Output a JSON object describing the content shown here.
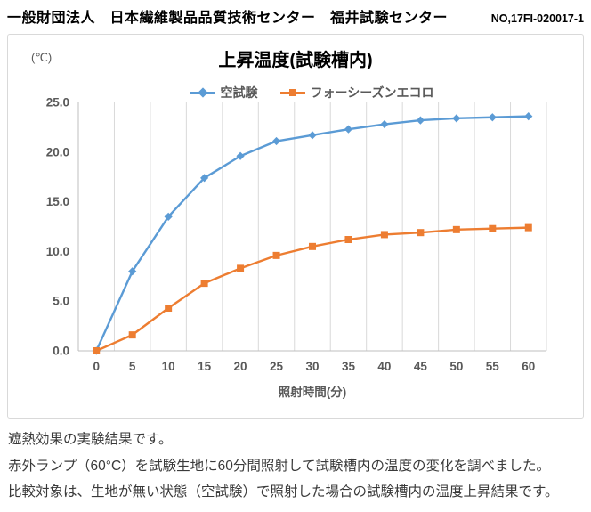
{
  "header": {
    "organization": "一般財団法人　日本繊維製品品質技術センター　福井試験センター",
    "doc_number": "NO,17FI-020017-1"
  },
  "chart_data": {
    "type": "line",
    "title": "上昇温度(試験槽内)",
    "unit_label": "(℃)",
    "xlabel": "照射時間(分)",
    "ylabel": "",
    "ylim": [
      0,
      25
    ],
    "ytick_step": 5,
    "ytick_labels": [
      "0.0",
      "5.0",
      "10.0",
      "15.0",
      "20.0",
      "25.0"
    ],
    "categories": [
      0,
      5,
      10,
      15,
      20,
      25,
      30,
      35,
      40,
      45,
      50,
      55,
      60
    ],
    "series": [
      {
        "name": "空試験",
        "color": "#5B9BD5",
        "marker": "diamond",
        "values": [
          0.0,
          8.0,
          13.5,
          17.4,
          19.6,
          21.1,
          21.7,
          22.3,
          22.8,
          23.2,
          23.4,
          23.5,
          23.6
        ]
      },
      {
        "name": "フォーシーズンエコロ",
        "color": "#ED7D31",
        "marker": "square",
        "values": [
          0.0,
          1.6,
          4.3,
          6.8,
          8.3,
          9.6,
          10.5,
          11.2,
          11.7,
          11.9,
          12.2,
          12.3,
          12.4
        ]
      }
    ],
    "grid": "vertical-only",
    "gridline_color": "#D9D9D9",
    "axis_line_color": "#BFBFBF",
    "legend_position": "top"
  },
  "description": {
    "line1": "遮熱効果の実験結果です。",
    "line2": "赤外ランプ（60°C）を試験生地に60分間照射して試験槽内の温度の変化を調べました。",
    "line3": "比較対象は、生地が無い状態（空試験）で照射した場合の試験槽内の温度上昇結果です。"
  }
}
